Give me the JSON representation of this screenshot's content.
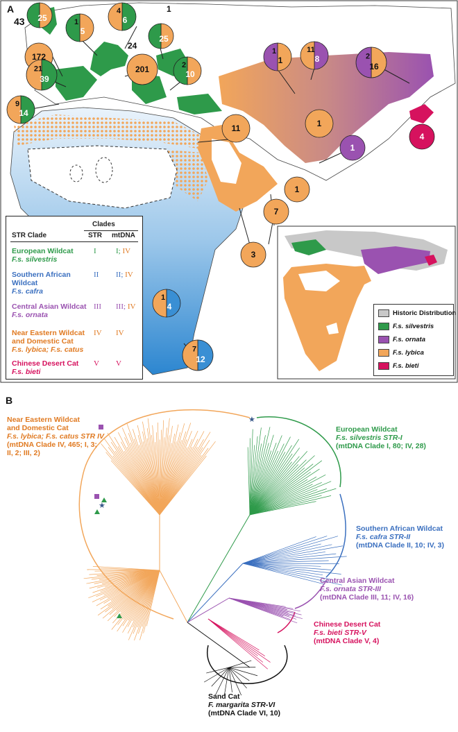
{
  "panel_a": {
    "label": "A",
    "pies": [
      {
        "id": "uk",
        "upper": "",
        "lower": "25",
        "outside": "43",
        "split": "green-orange"
      },
      {
        "id": "lux",
        "upper": "1",
        "lower": "5",
        "outside": "",
        "split": "green-orange"
      },
      {
        "id": "den",
        "upper": "4",
        "lower": "6",
        "outside": "",
        "split": "orange-green"
      },
      {
        "id": "pol",
        "upper": "",
        "lower": "25",
        "outside": "1",
        "split": "green-orange"
      },
      {
        "id": "ire",
        "upper": "",
        "lower": "172",
        "outside": "",
        "split": "orange"
      },
      {
        "id": "fra",
        "upper": "21",
        "lower": "39",
        "outside": "",
        "split": "orange-green"
      },
      {
        "id": "ger",
        "upper": "",
        "lower": "201",
        "outside": "24",
        "split": "orange"
      },
      {
        "id": "bal",
        "upper": "2",
        "lower": "10",
        "outside": "",
        "split": "green-orange"
      },
      {
        "id": "spa",
        "upper": "9",
        "lower": "14",
        "outside": "",
        "split": "orange-green"
      },
      {
        "id": "kaz",
        "upper": "1",
        "lower": "1",
        "outside": "",
        "split": "purple-orange"
      },
      {
        "id": "mon",
        "upper": "11",
        "lower": "8",
        "outside": "",
        "split": "orange-purple"
      },
      {
        "id": "chn",
        "upper": "2",
        "lower": "16",
        "outside": "",
        "split": "purple-orange"
      },
      {
        "id": "cas",
        "upper": "",
        "lower": "1",
        "outside": "",
        "split": "orange"
      },
      {
        "id": "isr",
        "upper": "",
        "lower": "11",
        "outside": "",
        "split": "orange"
      },
      {
        "id": "ind",
        "upper": "",
        "lower": "1",
        "outside": "",
        "split": "purple"
      },
      {
        "id": "bie",
        "upper": "",
        "lower": "4",
        "outside": "",
        "split": "pink"
      },
      {
        "id": "uae",
        "upper": "",
        "lower": "1",
        "outside": "",
        "split": "orange"
      },
      {
        "id": "oma",
        "upper": "",
        "lower": "7",
        "outside": "",
        "split": "orange"
      },
      {
        "id": "sau",
        "upper": "",
        "lower": "3",
        "outside": "",
        "split": "orange"
      },
      {
        "id": "nam",
        "upper": "1",
        "lower": "4",
        "outside": "",
        "split": "orange-blue"
      },
      {
        "id": "saf",
        "upper": "7",
        "lower": "12",
        "outside": "",
        "split": "orange-blue"
      }
    ],
    "legend": {
      "col_header": "STR Clade",
      "clades_header": "Clades",
      "str_header": "STR",
      "mtdna_header": "mtDNA",
      "rows": [
        {
          "name": "European Wildcat",
          "latin": "F.s. silvestris",
          "str": "I",
          "mtdna_a": "I",
          "mtdna_b": "IV",
          "color": "#2e9a4a"
        },
        {
          "name": "Southern African Wildcat",
          "latin": "F.s. cafra",
          "str": "II",
          "mtdna_a": "II",
          "mtdna_b": "IV",
          "color": "#3a6fbf"
        },
        {
          "name": "Central Asian Wildcat",
          "latin": "F.s. ornata",
          "str": "III",
          "mtdna_a": "III",
          "mtdna_b": "IV",
          "color": "#9a52b0"
        },
        {
          "name": "Near Eastern Wildcat and Domestic Cat",
          "latin": "F.s. lybica; F.s. catus",
          "str": "IV",
          "mtdna_a": "IV",
          "mtdna_b": "",
          "color": "#e07a22"
        },
        {
          "name": "Chinese Desert Cat",
          "latin": "F.s. bieti",
          "str": "V",
          "mtdna_a": "V",
          "mtdna_b": "",
          "color": "#d6125e"
        }
      ]
    },
    "inset_legend": [
      {
        "label": "Historic Distribution",
        "color": "#c8c8c8",
        "italic": false
      },
      {
        "label": "F.s. silvestris",
        "color": "#2e9a4a",
        "italic": true
      },
      {
        "label": "F.s. ornata",
        "color": "#9a52b0",
        "italic": true
      },
      {
        "label": "F.s. lybica",
        "color": "#f2a65a",
        "italic": true
      },
      {
        "label": "F.s. bieti",
        "color": "#d6125e",
        "italic": true
      }
    ]
  },
  "panel_b": {
    "label": "B",
    "clades": [
      {
        "id": "ne",
        "l1": "Near Eastern Wildcat",
        "l2": "and Domestic Cat",
        "l3": "F.s. lybica; F.s. catus STR IV",
        "l4": "(mtDNA Clade IV, 465; I, 3;",
        "l5": "II, 2; III, 2)"
      },
      {
        "id": "eu",
        "l1": "European Wildcat",
        "l2": "F.s. silvestris STR-I",
        "l3": "(mtDNA Clade I, 80; IV, 28)"
      },
      {
        "id": "sa",
        "l1": "Southern African Wildcat",
        "l2": "F.s. cafra STR-II",
        "l3": "(mtDNA Clade II, 10; IV, 3)"
      },
      {
        "id": "ca",
        "l1": "Central Asian Wildcat",
        "l2": "F.s. ornata STR-III",
        "l3": "(mtDNA Clade III, 11; IV, 16)"
      },
      {
        "id": "cd",
        "l1": "Chinese Desert Cat",
        "l2": "F.s. bieti STR-V",
        "l3": "(mtDNA Clade V, 4)"
      },
      {
        "id": "sc",
        "l1": "Sand Cat",
        "l2": "F. margarita STR-VI",
        "l3": "(mtDNA Clade VI, 10)"
      }
    ]
  },
  "colors": {
    "green": "#2e9a4a",
    "orange": "#f2a65a",
    "orange_dark": "#e07a22",
    "blue": "#3a6fbf",
    "purple": "#9a52b0",
    "pink": "#d6125e",
    "grey": "#c8c8c8"
  }
}
